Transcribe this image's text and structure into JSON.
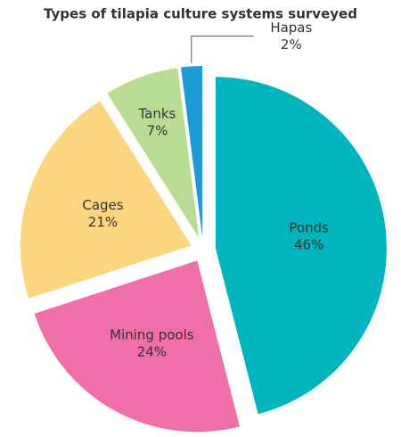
{
  "chart_data": {
    "type": "pie",
    "title": "Types of tilapia culture systems surveyed",
    "categories": [
      "Ponds",
      "Mining pools",
      "Cages",
      "Tanks",
      "Hapas"
    ],
    "values": [
      46,
      24,
      21,
      7,
      2
    ],
    "value_labels": [
      "46%",
      "24%",
      "21%",
      "7%",
      "2%"
    ],
    "colors": [
      "#00b5bd",
      "#f06fa8",
      "#fdd57e",
      "#b9dc93",
      "#1e9ad6"
    ]
  }
}
